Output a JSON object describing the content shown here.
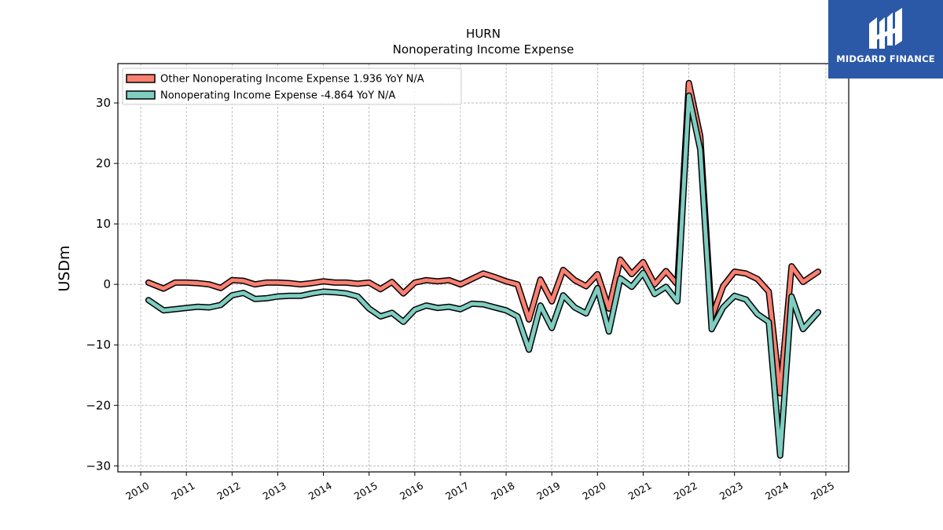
{
  "brand": {
    "name": "MIDGARD FINANCE",
    "color": "#2b59a8"
  },
  "chart_data": {
    "type": "line",
    "title": "HURN",
    "subtitle": "Nonoperating Income Expense",
    "ylabel": "USDm",
    "xlabel": "",
    "xlim": [
      2009.5,
      2025.5
    ],
    "ylim": [
      -31,
      36.5
    ],
    "x_ticks": [
      "2010",
      "2011",
      "2012",
      "2013",
      "2014",
      "2015",
      "2016",
      "2017",
      "2018",
      "2019",
      "2020",
      "2021",
      "2022",
      "2023",
      "2024",
      "2025"
    ],
    "y_ticks": [
      -30,
      -20,
      -10,
      0,
      10,
      20,
      30
    ],
    "y_tick_labels": [
      "−30",
      "−20",
      "−10",
      "0",
      "10",
      "20",
      "30"
    ],
    "grid": true,
    "legend_position": "top-left",
    "series": [
      {
        "name": "Other Nonoperating Income Expense  1.936 YoY N/A",
        "color": "#fa8072",
        "points": [
          [
            2010.17,
            0.3
          ],
          [
            2010.5,
            -0.7
          ],
          [
            2010.75,
            0.3
          ],
          [
            2011.0,
            0.3
          ],
          [
            2011.25,
            0.2
          ],
          [
            2011.5,
            0.0
          ],
          [
            2011.75,
            -0.6
          ],
          [
            2012.0,
            0.7
          ],
          [
            2012.25,
            0.6
          ],
          [
            2012.5,
            0.0
          ],
          [
            2012.75,
            0.3
          ],
          [
            2013.0,
            0.3
          ],
          [
            2013.25,
            0.2
          ],
          [
            2013.5,
            0.0
          ],
          [
            2013.75,
            0.2
          ],
          [
            2014.0,
            0.5
          ],
          [
            2014.25,
            0.3
          ],
          [
            2014.5,
            0.3
          ],
          [
            2014.75,
            0.1
          ],
          [
            2015.0,
            0.3
          ],
          [
            2015.25,
            -0.8
          ],
          [
            2015.5,
            0.4
          ],
          [
            2015.75,
            -1.5
          ],
          [
            2016.0,
            0.3
          ],
          [
            2016.25,
            0.7
          ],
          [
            2016.5,
            0.5
          ],
          [
            2016.75,
            0.7
          ],
          [
            2017.0,
            0.0
          ],
          [
            2017.25,
            0.9
          ],
          [
            2017.5,
            1.8
          ],
          [
            2017.75,
            1.2
          ],
          [
            2018.0,
            0.5
          ],
          [
            2018.25,
            0.0
          ],
          [
            2018.5,
            -5.8
          ],
          [
            2018.75,
            0.8
          ],
          [
            2019.0,
            -2.8
          ],
          [
            2019.25,
            2.4
          ],
          [
            2019.5,
            0.7
          ],
          [
            2019.75,
            -0.3
          ],
          [
            2020.0,
            1.7
          ],
          [
            2020.25,
            -4.0
          ],
          [
            2020.5,
            4.1
          ],
          [
            2020.75,
            1.7
          ],
          [
            2021.0,
            3.7
          ],
          [
            2021.25,
            0.0
          ],
          [
            2021.5,
            2.2
          ],
          [
            2021.75,
            0.0
          ],
          [
            2022.0,
            33.3
          ],
          [
            2022.25,
            24.5
          ],
          [
            2022.5,
            -5.5
          ],
          [
            2022.75,
            -0.3
          ],
          [
            2023.0,
            2.1
          ],
          [
            2023.25,
            1.8
          ],
          [
            2023.5,
            0.9
          ],
          [
            2023.75,
            -1.2
          ],
          [
            2024.0,
            -18.0
          ],
          [
            2024.25,
            3.0
          ],
          [
            2024.5,
            0.4
          ],
          [
            2024.83,
            2.1
          ]
        ]
      },
      {
        "name": "Nonoperating Income Expense  -4.864 YoY N/A",
        "color": "#7ecdc0",
        "points": [
          [
            2010.17,
            -2.6
          ],
          [
            2010.5,
            -4.3
          ],
          [
            2010.75,
            -4.1
          ],
          [
            2011.0,
            -3.9
          ],
          [
            2011.25,
            -3.7
          ],
          [
            2011.5,
            -3.8
          ],
          [
            2011.75,
            -3.4
          ],
          [
            2012.0,
            -1.8
          ],
          [
            2012.25,
            -1.4
          ],
          [
            2012.5,
            -2.4
          ],
          [
            2012.75,
            -2.3
          ],
          [
            2013.0,
            -2.0
          ],
          [
            2013.25,
            -1.9
          ],
          [
            2013.5,
            -1.9
          ],
          [
            2013.75,
            -1.5
          ],
          [
            2014.0,
            -1.2
          ],
          [
            2014.25,
            -1.3
          ],
          [
            2014.5,
            -1.5
          ],
          [
            2014.75,
            -2.0
          ],
          [
            2015.0,
            -4.0
          ],
          [
            2015.25,
            -5.3
          ],
          [
            2015.5,
            -4.7
          ],
          [
            2015.75,
            -6.2
          ],
          [
            2016.0,
            -4.2
          ],
          [
            2016.25,
            -3.5
          ],
          [
            2016.5,
            -3.9
          ],
          [
            2016.75,
            -3.7
          ],
          [
            2017.0,
            -4.1
          ],
          [
            2017.25,
            -3.2
          ],
          [
            2017.5,
            -3.3
          ],
          [
            2017.75,
            -3.8
          ],
          [
            2018.0,
            -4.3
          ],
          [
            2018.25,
            -5.3
          ],
          [
            2018.5,
            -10.8
          ],
          [
            2018.75,
            -3.5
          ],
          [
            2019.0,
            -7.2
          ],
          [
            2019.25,
            -1.8
          ],
          [
            2019.5,
            -3.8
          ],
          [
            2019.75,
            -4.8
          ],
          [
            2020.0,
            -0.6
          ],
          [
            2020.25,
            -7.8
          ],
          [
            2020.5,
            1.0
          ],
          [
            2020.75,
            -0.4
          ],
          [
            2021.0,
            1.9
          ],
          [
            2021.25,
            -1.6
          ],
          [
            2021.5,
            -0.4
          ],
          [
            2021.75,
            -2.8
          ],
          [
            2022.0,
            31.2
          ],
          [
            2022.25,
            22.3
          ],
          [
            2022.5,
            -7.4
          ],
          [
            2022.75,
            -3.8
          ],
          [
            2023.0,
            -1.9
          ],
          [
            2023.25,
            -2.5
          ],
          [
            2023.5,
            -4.9
          ],
          [
            2023.75,
            -6.2
          ],
          [
            2024.0,
            -28.3
          ],
          [
            2024.25,
            -2.0
          ],
          [
            2024.5,
            -7.4
          ],
          [
            2024.83,
            -4.6
          ]
        ]
      }
    ]
  }
}
